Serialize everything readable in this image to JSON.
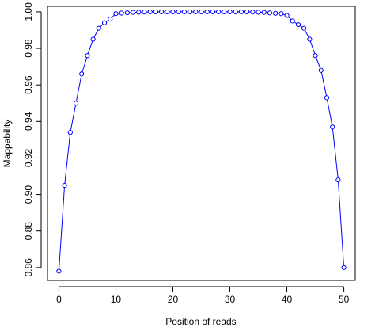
{
  "chart_data": {
    "type": "line",
    "xlabel": "Position of reads",
    "ylabel": "Mappability",
    "xlim": [
      -2,
      52
    ],
    "ylim": [
      0.853,
      1.003
    ],
    "x_ticks": [
      0,
      10,
      20,
      30,
      40,
      50
    ],
    "y_ticks": [
      0.86,
      0.88,
      0.9,
      0.92,
      0.94,
      0.96,
      0.98,
      1.0
    ],
    "x_tick_labels": [
      "0",
      "10",
      "20",
      "30",
      "40",
      "50"
    ],
    "y_tick_labels": [
      "0.86",
      "0.88",
      "0.90",
      "0.92",
      "0.94",
      "0.96",
      "0.98",
      "1.00"
    ],
    "grid": false,
    "series": [
      {
        "color": "#0000ff",
        "marker": "open-circle",
        "x": [
          0,
          1,
          2,
          3,
          4,
          5,
          6,
          7,
          8,
          9,
          10,
          11,
          12,
          13,
          14,
          15,
          16,
          17,
          18,
          19,
          20,
          21,
          22,
          23,
          24,
          25,
          26,
          27,
          28,
          29,
          30,
          31,
          32,
          33,
          34,
          35,
          36,
          37,
          38,
          39,
          40,
          41,
          42,
          43,
          44,
          45,
          46,
          47,
          48,
          49,
          50
        ],
        "y": [
          0.858,
          0.905,
          0.934,
          0.95,
          0.966,
          0.976,
          0.985,
          0.991,
          0.994,
          0.996,
          0.999,
          0.9993,
          0.9995,
          0.9997,
          0.9998,
          0.9999,
          1.0,
          1.0,
          1.0,
          1.0,
          1.0,
          1.0,
          1.0,
          1.0,
          1.0,
          1.0,
          1.0,
          1.0,
          1.0,
          1.0,
          1.0,
          1.0,
          1.0,
          1.0,
          0.9999,
          0.9998,
          0.9997,
          0.9994,
          0.9992,
          0.999,
          0.998,
          0.995,
          0.993,
          0.991,
          0.985,
          0.976,
          0.968,
          0.953,
          0.937,
          0.908,
          0.86
        ]
      }
    ]
  }
}
